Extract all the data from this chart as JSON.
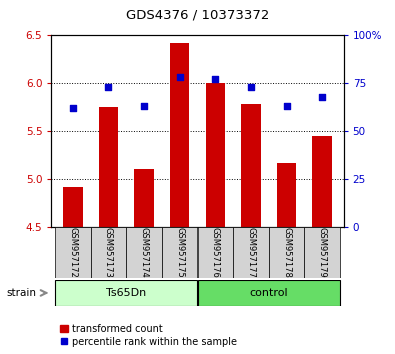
{
  "title": "GDS4376 / 10373372",
  "categories": [
    "GSM957172",
    "GSM957173",
    "GSM957174",
    "GSM957175",
    "GSM957176",
    "GSM957177",
    "GSM957178",
    "GSM957179"
  ],
  "red_values": [
    4.91,
    5.75,
    5.1,
    6.42,
    6.0,
    5.78,
    5.17,
    5.45
  ],
  "blue_values": [
    62,
    73,
    63,
    78,
    77,
    73,
    63,
    68
  ],
  "ylim_left": [
    4.5,
    6.5
  ],
  "ylim_right": [
    0,
    100
  ],
  "yticks_left": [
    4.5,
    5.0,
    5.5,
    6.0,
    6.5
  ],
  "yticks_right": [
    0,
    25,
    50,
    75,
    100
  ],
  "ytick_labels_right": [
    "0",
    "25",
    "50",
    "75",
    "100%"
  ],
  "bar_bottom": 4.5,
  "bar_color": "#cc0000",
  "dot_color": "#0000cc",
  "group1_label": "Ts65Dn",
  "group2_label": "control",
  "group1_color": "#ccffcc",
  "group2_color": "#66dd66",
  "strain_label": "strain",
  "legend_red": "transformed count",
  "legend_blue": "percentile rank within the sample",
  "plot_bg_color": "#ffffff",
  "tick_label_color_left": "#cc0000",
  "tick_label_color_right": "#0000cc",
  "gray_box_color": "#d3d3d3"
}
